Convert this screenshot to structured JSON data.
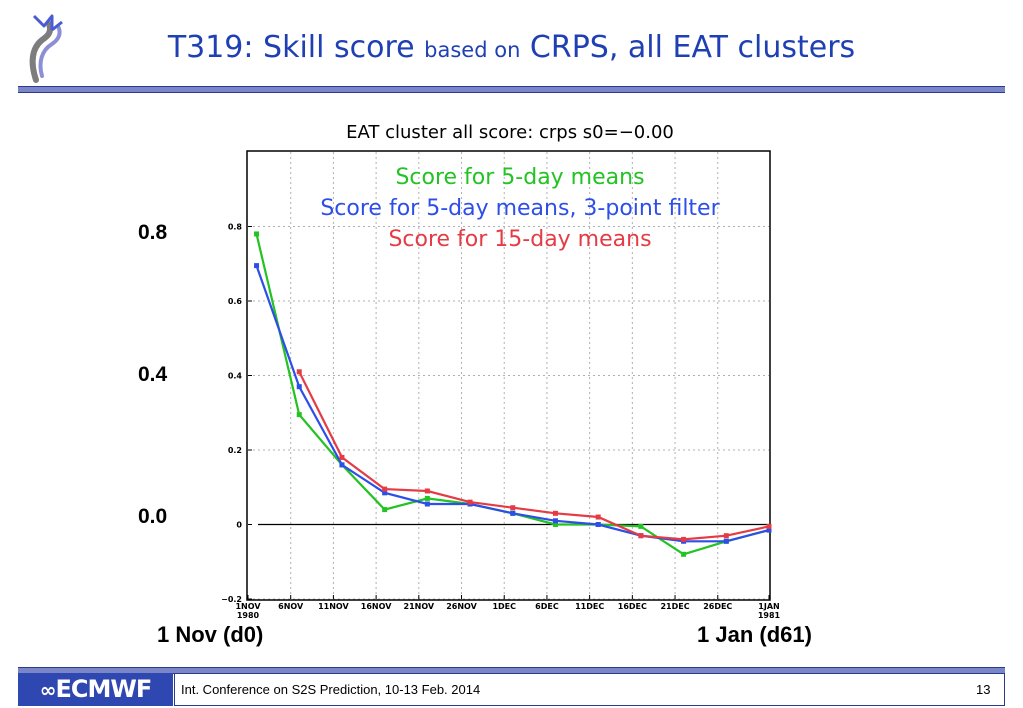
{
  "slide": {
    "title_part1": "T319: Skill score ",
    "title_part2": "based on",
    "title_part3": " CRPS,  all EAT clusters",
    "footer_text": "Int. Conference on S2S Prediction, 10-13 Feb. 2014",
    "page_number": "13",
    "logo_text": "ECMWF",
    "big_y_labels": [
      "0.8",
      "0.4",
      "0.0"
    ],
    "x_start_label": "1 Nov (d0)",
    "x_end_label": "1 Jan (d61)",
    "colors": {
      "title": "#1f3fb4",
      "rule": "#7a86c8",
      "logo_bg": "#2f47b0"
    }
  },
  "chart_data": {
    "type": "line",
    "title": "EAT cluster all   score: crps    s0=−0.00",
    "xlabel": "",
    "ylabel": "",
    "ylim": [
      -0.2,
      1.0
    ],
    "yticks": [
      -0.2,
      0,
      0.2,
      0.4,
      0.6,
      0.8
    ],
    "ytick_labels": [
      "−0.2",
      "0",
      "0.2",
      "0.4",
      "0.6",
      "0.8"
    ],
    "xlim": [
      "1980-11-01",
      "1981-01-01"
    ],
    "xticks": [
      {
        "date": "1980-11-01",
        "label": "1NOV",
        "sublabel": "1980"
      },
      {
        "date": "1980-11-06",
        "label": "6NOV"
      },
      {
        "date": "1980-11-11",
        "label": "11NOV"
      },
      {
        "date": "1980-11-16",
        "label": "16NOV"
      },
      {
        "date": "1980-11-21",
        "label": "21NOV"
      },
      {
        "date": "1980-11-26",
        "label": "26NOV"
      },
      {
        "date": "1980-12-01",
        "label": "1DEC"
      },
      {
        "date": "1980-12-06",
        "label": "6DEC"
      },
      {
        "date": "1980-12-11",
        "label": "11DEC"
      },
      {
        "date": "1980-12-16",
        "label": "16DEC"
      },
      {
        "date": "1980-12-21",
        "label": "21DEC"
      },
      {
        "date": "1980-12-26",
        "label": "26DEC"
      },
      {
        "date": "1981-01-01",
        "label": "1JAN",
        "sublabel": "1981"
      }
    ],
    "grid": true,
    "reference_line": 0,
    "legend_position": "top",
    "series": [
      {
        "name": "Score for 5-day means",
        "color": "#22c322",
        "x": [
          "1980-11-02",
          "1980-11-07",
          "1980-11-12",
          "1980-11-17",
          "1980-11-22",
          "1980-11-27",
          "1980-12-02",
          "1980-12-07",
          "1980-12-12",
          "1980-12-17",
          "1980-12-22",
          "1980-12-27",
          "1981-01-01"
        ],
        "y": [
          0.78,
          0.295,
          0.16,
          0.04,
          0.07,
          0.055,
          0.03,
          0.0,
          0.0,
          -0.005,
          -0.08,
          -0.045,
          -0.015
        ]
      },
      {
        "name": "Score for 5-day means, 3-point filter",
        "color": "#2d4ee8",
        "x": [
          "1980-11-02",
          "1980-11-07",
          "1980-11-12",
          "1980-11-17",
          "1980-11-22",
          "1980-11-27",
          "1980-12-02",
          "1980-12-07",
          "1980-12-12",
          "1980-12-17",
          "1980-12-22",
          "1980-12-27",
          "1981-01-01"
        ],
        "y": [
          0.695,
          0.37,
          0.16,
          0.085,
          0.055,
          0.055,
          0.03,
          0.01,
          0.0,
          -0.03,
          -0.045,
          -0.045,
          -0.015
        ]
      },
      {
        "name": "Score for 15-day means",
        "color": "#e53b45",
        "x": [
          "1980-11-07",
          "1980-11-12",
          "1980-11-17",
          "1980-11-22",
          "1980-11-27",
          "1980-12-02",
          "1980-12-07",
          "1980-12-12",
          "1980-12-17",
          "1980-12-22",
          "1980-12-27",
          "1981-01-01"
        ],
        "y": [
          0.41,
          0.18,
          0.095,
          0.09,
          0.06,
          0.045,
          0.03,
          0.02,
          -0.03,
          -0.04,
          -0.03,
          -0.005
        ]
      }
    ]
  }
}
